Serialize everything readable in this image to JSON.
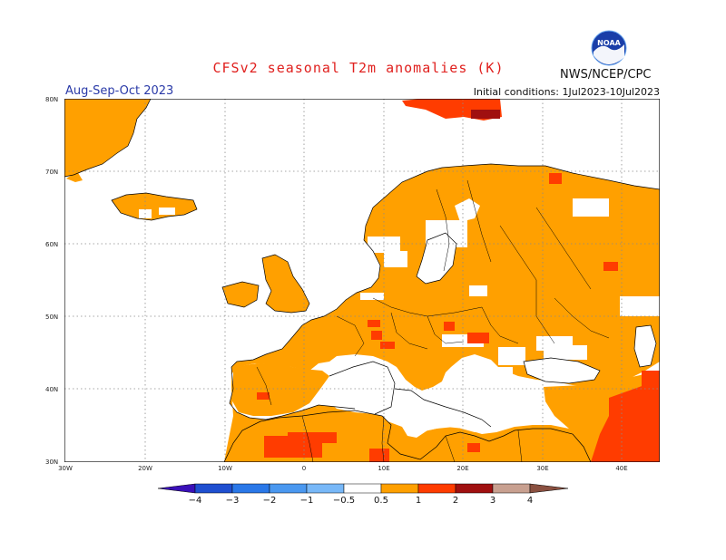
{
  "header": {
    "title": "CFSv2 seasonal T2m anomalies (K)",
    "organization": "NWS/NCEP/CPC",
    "logo_text": "NOAA",
    "season": "Aug-Sep-Oct 2023",
    "initial_conditions": "Initial conditions: 1Jul2023-10Jul2023"
  },
  "map": {
    "lat_labels": [
      "80N",
      "70N",
      "60N",
      "50N",
      "40N",
      "30N"
    ],
    "lon_labels": [
      "30W",
      "20W",
      "10W",
      "0",
      "10E",
      "20E",
      "30E",
      "40E"
    ],
    "colors": {
      "ocean_neutral": "#ffffff",
      "warm_0_5_1": "#ffa000",
      "warm_1_2": "#ff3c00",
      "warm_2_3": "#a01010",
      "border": "#000000"
    }
  },
  "colorbar": {
    "labels": [
      "−4",
      "−3",
      "−2",
      "−1",
      "−0.5",
      "0.5",
      "1",
      "2",
      "3",
      "4"
    ],
    "colors": [
      "#3a10b8",
      "#1f4fd0",
      "#2a78e8",
      "#4a98f0",
      "#78b8f8",
      "#ffffff",
      "#ffa000",
      "#ff3c00",
      "#a01010",
      "#c8a090",
      "#8a5040"
    ]
  }
}
